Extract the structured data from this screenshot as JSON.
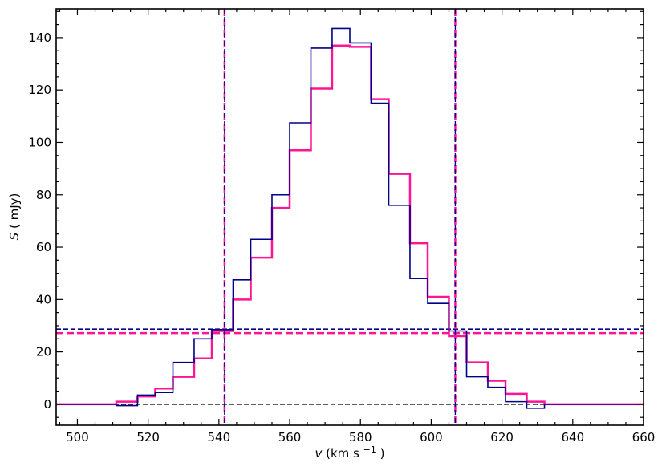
{
  "chart_data": {
    "type": "line",
    "style": "step histogram",
    "xlabel_var": "v",
    "xlabel_units": "(km s",
    "xlabel_exp": "−1",
    "xlabel_close": ")",
    "ylabel_var": "S",
    "ylabel_units": "( mJy)",
    "xlim": [
      494,
      660
    ],
    "ylim": [
      -8,
      151
    ],
    "xticks": [
      500,
      520,
      540,
      560,
      580,
      600,
      620,
      640,
      660
    ],
    "yticks": [
      0,
      20,
      40,
      60,
      80,
      100,
      120,
      140
    ],
    "grid": false,
    "legend": "none",
    "series": [
      {
        "color": "#ff1493",
        "linewidth": 2.5,
        "bin_edges": [
          494,
          511,
          517,
          522,
          527,
          533,
          538,
          544,
          549,
          555,
          560,
          566,
          572,
          577,
          583,
          588,
          594,
          599,
          605,
          610,
          616,
          621,
          627,
          632,
          660
        ],
        "values": [
          0,
          1,
          3,
          6,
          10.5,
          17.5,
          28,
          40,
          56,
          75,
          97,
          120.5,
          137,
          136.5,
          116.5,
          88,
          61.5,
          41,
          26,
          16,
          9,
          4,
          1,
          0
        ]
      },
      {
        "color": "#00008b",
        "linewidth": 1.6,
        "bin_edges": [
          494,
          511,
          517,
          522,
          527,
          533,
          538,
          544,
          549,
          555,
          560,
          566,
          572,
          577,
          583,
          588,
          594,
          599,
          605,
          610,
          616,
          621,
          627,
          632,
          660
        ],
        "values": [
          0,
          -0.5,
          3.5,
          4.5,
          16,
          25,
          28.5,
          47.5,
          63,
          80,
          107.5,
          136,
          143.5,
          138,
          115,
          76,
          48,
          38.5,
          28,
          10.5,
          6.5,
          1,
          -1.5,
          0
        ]
      }
    ],
    "reference_lines": [
      {
        "orientation": "horizontal",
        "value": 0,
        "color": "#000000",
        "style": "dashed"
      },
      {
        "orientation": "horizontal",
        "value": 28.7,
        "color": "#00008b",
        "style": "dashed"
      },
      {
        "orientation": "horizontal",
        "value": 27.2,
        "color": "#ff1493",
        "style": "dashed"
      },
      {
        "orientation": "vertical",
        "value": 541.6,
        "color": "#ff1493",
        "style": "dashed"
      },
      {
        "orientation": "vertical",
        "value": 541.6,
        "color": "#00008b",
        "style": "dashed"
      },
      {
        "orientation": "vertical",
        "value": 606.8,
        "color": "#ff1493",
        "style": "dashed"
      },
      {
        "orientation": "vertical",
        "value": 606.8,
        "color": "#00008b",
        "style": "dashed"
      }
    ]
  }
}
